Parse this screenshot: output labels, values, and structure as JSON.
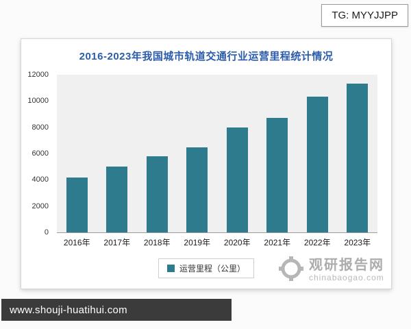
{
  "badges": {
    "tg": "TG: MYYJJPP"
  },
  "footer": {
    "url": "www.shouji-huatihui.com"
  },
  "watermark": {
    "name": "观研报告网",
    "site": "chinabaogao.com"
  },
  "colors": {
    "bar": "#2e7b8e",
    "title_blue": "#2b5cab",
    "footer_bg": "#3b3b3b"
  },
  "chart_data": {
    "type": "bar",
    "title": "2016-2023年我国城市轨道交通行业运营里程统计情况",
    "categories": [
      "2016年",
      "2017年",
      "2018年",
      "2019年",
      "2020年",
      "2021年",
      "2022年",
      "2023年"
    ],
    "values": [
      4200,
      5000,
      5800,
      6450,
      8000,
      8700,
      10350,
      11300
    ],
    "legend": "运营里程（公里）",
    "xlabel": "",
    "ylabel": "",
    "ylim": [
      0,
      12000
    ],
    "yticks": [
      0,
      2000,
      4000,
      6000,
      8000,
      10000,
      12000
    ],
    "grid": false,
    "legend_position": "bottom",
    "bar_color": "#2e7b8e"
  }
}
